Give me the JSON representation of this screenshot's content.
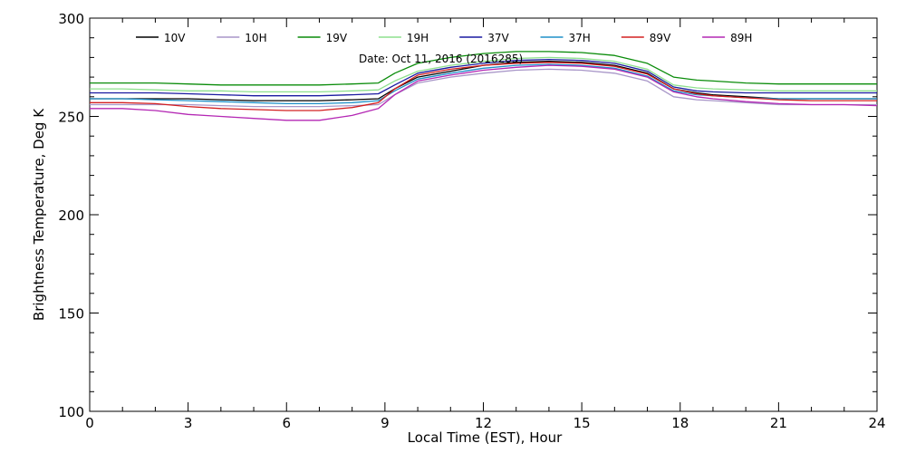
{
  "chart_data": {
    "type": "line",
    "title": "",
    "annotation": "Date: Oct 11, 2016 (2016285)",
    "xlabel": "Local Time (EST), Hour",
    "ylabel": "Brightness Temperature, Deg K",
    "xlim": [
      0,
      24
    ],
    "ylim": [
      100,
      300
    ],
    "xticks": [
      0,
      3,
      6,
      9,
      12,
      15,
      18,
      21,
      24
    ],
    "yticks": [
      100,
      150,
      200,
      250,
      300
    ],
    "grid": false,
    "legend_position": "top",
    "x": [
      0,
      1,
      2,
      3,
      4,
      5,
      6,
      7,
      8,
      8.8,
      9.3,
      10,
      11,
      12,
      13,
      14,
      15,
      16,
      17,
      17.8,
      18.5,
      19,
      20,
      21,
      22,
      23,
      24
    ],
    "series": [
      {
        "name": "10V",
        "color": "#000000",
        "values": [
          259,
          259,
          259,
          259,
          258.5,
          258,
          258,
          258,
          258.5,
          259,
          264,
          270,
          273,
          276,
          277.5,
          278,
          277.5,
          276,
          272,
          264,
          262,
          261,
          260,
          259,
          259,
          259,
          259
        ]
      },
      {
        "name": "10H",
        "color": "#a896c8",
        "values": [
          256,
          256,
          256,
          256,
          255.5,
          255,
          255,
          255,
          255.5,
          256,
          261,
          267,
          270,
          272,
          273.5,
          274,
          273.5,
          272,
          268,
          260,
          258.5,
          258,
          257,
          256,
          256,
          256,
          256
        ]
      },
      {
        "name": "19V",
        "color": "#0a8c0a",
        "values": [
          267,
          267,
          267,
          266.5,
          266,
          266,
          266,
          266,
          266.5,
          267,
          272,
          277,
          280,
          282,
          283,
          283,
          282.5,
          281,
          277,
          270,
          268.5,
          268,
          267,
          266.5,
          266.5,
          266.5,
          266.5
        ]
      },
      {
        "name": "19H",
        "color": "#8ee08e",
        "values": [
          264,
          264,
          263.5,
          263,
          263,
          262.5,
          262.5,
          262.5,
          263,
          263.5,
          268,
          273,
          276,
          278,
          279.5,
          280,
          279.5,
          278,
          274,
          266,
          264.5,
          264,
          263.5,
          263,
          263,
          263,
          263
        ]
      },
      {
        "name": "37V",
        "color": "#1a1aa0",
        "values": [
          262,
          262,
          262,
          261.5,
          261,
          260.5,
          260.5,
          260.5,
          261,
          261.5,
          266,
          272,
          275,
          277,
          278.5,
          279,
          278.5,
          277,
          273,
          265,
          263,
          262.5,
          262,
          262,
          262,
          262,
          262
        ]
      },
      {
        "name": "37H",
        "color": "#1e90c8",
        "values": [
          259,
          259,
          258.5,
          258,
          257.5,
          257,
          256.5,
          256.5,
          257,
          258,
          263,
          269,
          272,
          274.5,
          276,
          276.5,
          276,
          274.5,
          270.5,
          263,
          261,
          260.5,
          259.5,
          259,
          259,
          259,
          259
        ]
      },
      {
        "name": "89V",
        "color": "#d42020",
        "values": [
          257,
          257,
          256.5,
          255,
          254,
          253.5,
          253,
          253,
          254.5,
          257,
          264,
          271,
          274,
          276,
          277,
          277.5,
          277,
          275.5,
          271.5,
          264,
          261.5,
          260.5,
          259.5,
          258.5,
          258,
          258,
          258
        ]
      },
      {
        "name": "89H",
        "color": "#b428b4",
        "values": [
          254,
          254,
          253,
          251,
          250,
          249,
          248,
          248,
          250.5,
          254,
          261,
          268,
          271,
          273.5,
          275,
          276,
          275.5,
          274,
          270,
          262.5,
          260,
          259,
          257.5,
          256.5,
          256,
          256,
          255.5
        ]
      }
    ]
  }
}
